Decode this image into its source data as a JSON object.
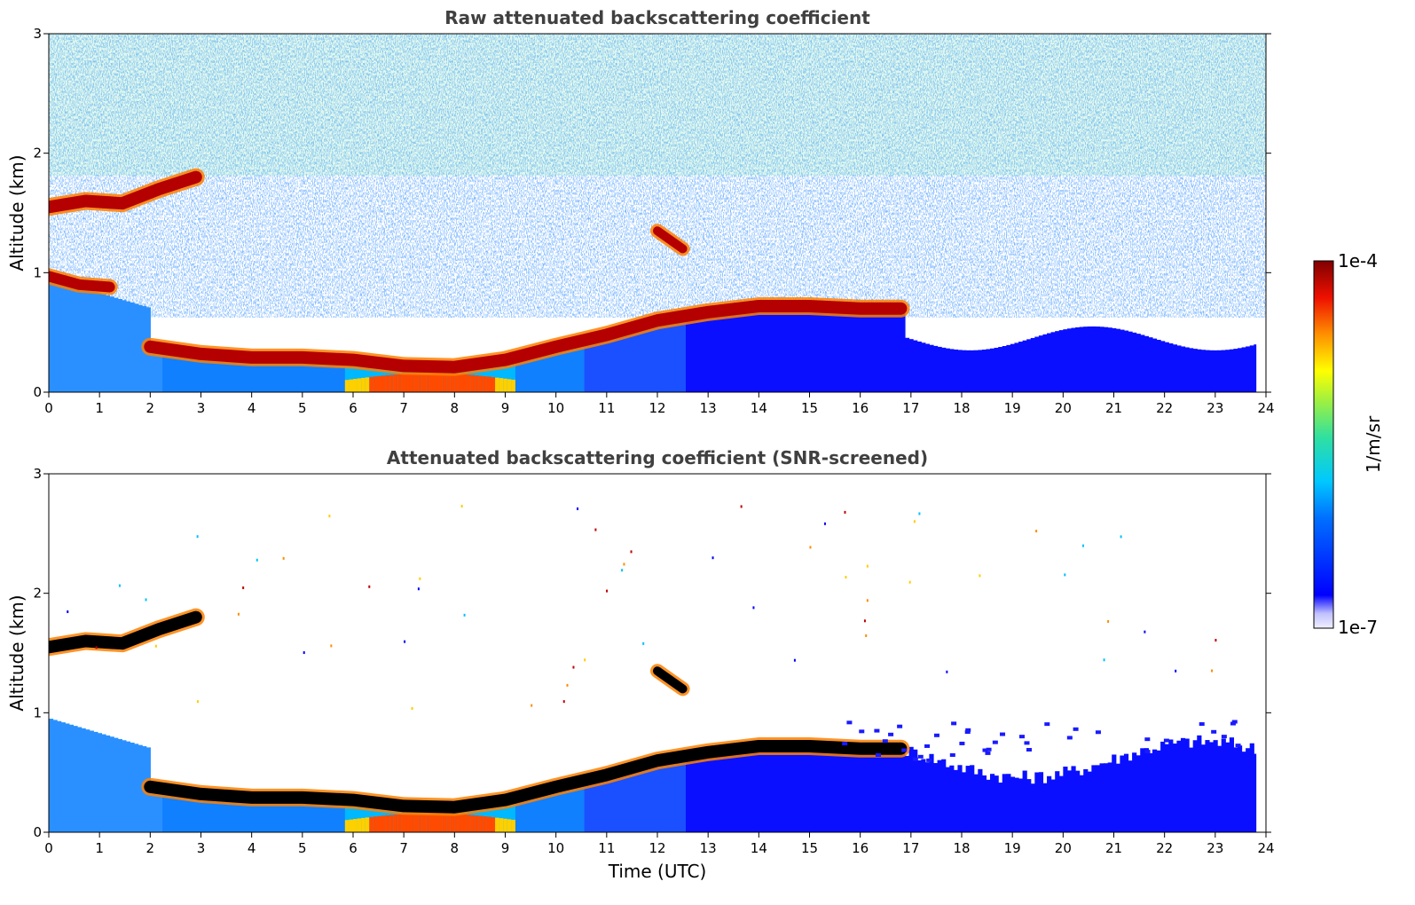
{
  "chart_data": [
    {
      "type": "heatmap",
      "title": "Raw attenuated backscattering coefficient",
      "xlabel": "",
      "ylabel": "Altitude (km)",
      "xlim": [
        0,
        24
      ],
      "ylim": [
        0,
        3
      ],
      "xticks": [
        "0",
        "1",
        "2",
        "3",
        "4",
        "5",
        "6",
        "7",
        "8",
        "9",
        "10",
        "11",
        "12",
        "13",
        "14",
        "15",
        "16",
        "17",
        "18",
        "19",
        "20",
        "21",
        "22",
        "23",
        "24"
      ],
      "yticks": [
        "0",
        "1",
        "2",
        "3"
      ],
      "features": [
        {
          "name": "upper layer",
          "x_start": 0.0,
          "x_end": 2.9,
          "altitude": [
            1.55,
            1.6,
            1.58,
            1.7,
            1.8
          ]
        },
        {
          "name": "residual layer",
          "x_start": 0.0,
          "x_end": 1.2,
          "altitude": [
            0.97,
            0.9,
            0.88
          ]
        },
        {
          "name": "boundary layer top",
          "x": [
            2.0,
            3.0,
            4.0,
            5.0,
            6.0,
            7.0,
            8.0,
            9.0,
            10.0,
            11.0,
            12.0,
            13.0,
            14.0,
            15.0,
            16.0,
            16.8
          ],
          "altitude": [
            0.38,
            0.32,
            0.29,
            0.29,
            0.27,
            0.22,
            0.21,
            0.27,
            0.38,
            0.48,
            0.6,
            0.67,
            0.72,
            0.72,
            0.7,
            0.7
          ]
        },
        {
          "name": "elevated patch",
          "x_start": 12.0,
          "x_end": 12.5,
          "altitude": [
            1.35,
            1.2
          ]
        }
      ]
    },
    {
      "type": "heatmap",
      "title": "Attenuated backscattering coefficient (SNR-screened)",
      "xlabel": "Time (UTC)",
      "ylabel": "Altitude (km)",
      "xlim": [
        0,
        24
      ],
      "ylim": [
        0,
        3
      ],
      "xticks": [
        "0",
        "1",
        "2",
        "3",
        "4",
        "5",
        "6",
        "7",
        "8",
        "9",
        "10",
        "11",
        "12",
        "13",
        "14",
        "15",
        "16",
        "17",
        "18",
        "19",
        "20",
        "21",
        "22",
        "23",
        "24"
      ],
      "yticks": [
        "0",
        "1",
        "2",
        "3"
      ],
      "features": [
        {
          "name": "upper layer",
          "x_start": 0.0,
          "x_end": 2.9,
          "altitude": [
            1.55,
            1.6,
            1.58,
            1.7,
            1.8
          ]
        },
        {
          "name": "boundary layer top",
          "x": [
            2.0,
            3.0,
            4.0,
            5.0,
            6.0,
            7.0,
            8.0,
            9.0,
            10.0,
            11.0,
            12.0,
            13.0,
            14.0,
            15.0,
            16.0,
            16.8
          ],
          "altitude": [
            0.38,
            0.32,
            0.29,
            0.29,
            0.27,
            0.22,
            0.21,
            0.27,
            0.38,
            0.48,
            0.6,
            0.67,
            0.72,
            0.72,
            0.7,
            0.7
          ]
        },
        {
          "name": "elevated patch",
          "x_start": 12.0,
          "x_end": 12.5,
          "altitude": [
            1.35,
            1.2
          ]
        }
      ]
    }
  ],
  "colorbar": {
    "label": "1/m/sr",
    "max_label": "1e-4",
    "min_label": "1e-7",
    "scale": "log",
    "colors": [
      "#eeeeff",
      "#0000ff",
      "#00bfff",
      "#00e0a0",
      "#ffff00",
      "#ff6000",
      "#c00000",
      "#800000"
    ]
  }
}
